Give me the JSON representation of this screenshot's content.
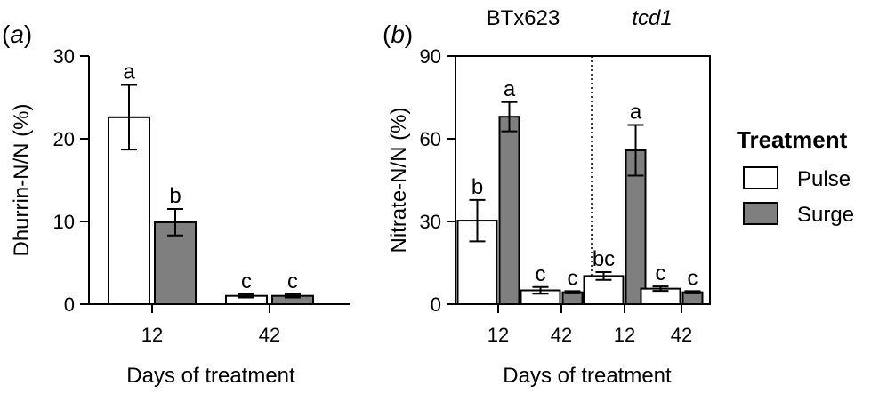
{
  "chart_data": [
    {
      "panel": "(a)",
      "type": "bar",
      "ylabel": "Dhurrin-N/N (%)",
      "xlabel": "Days of treatment",
      "ylim": [
        0,
        30
      ],
      "yticks": [
        0,
        10,
        20,
        30
      ],
      "categories": [
        "12",
        "42"
      ],
      "series": [
        {
          "name": "Pulse",
          "color": "#ffffff",
          "values": [
            22.6,
            1.0
          ],
          "errors": [
            3.9,
            0.2
          ],
          "letters": [
            "a",
            "c"
          ]
        },
        {
          "name": "Surge",
          "color": "#7f7f7f",
          "values": [
            9.9,
            1.0
          ],
          "errors": [
            1.6,
            0.2
          ],
          "letters": [
            "b",
            "c"
          ]
        }
      ]
    },
    {
      "panel": "(b)",
      "type": "bar",
      "ylabel": "Nitrate-N/N (%)",
      "xlabel": "Days of treatment",
      "ylim": [
        0,
        90
      ],
      "yticks": [
        0,
        30,
        60,
        90
      ],
      "groups": [
        {
          "title": "BTx623",
          "italic": false,
          "categories": [
            "12",
            "42"
          ]
        },
        {
          "title": "tcd1",
          "italic": true,
          "categories": [
            "12",
            "42"
          ]
        }
      ],
      "series": [
        {
          "name": "Pulse",
          "color": "#ffffff",
          "values": [
            30.3,
            5.0,
            10.2,
            5.6
          ],
          "errors": [
            7.5,
            1.2,
            1.4,
            0.8
          ],
          "letters": [
            "b",
            "c",
            "bc",
            "c"
          ]
        },
        {
          "name": "Surge",
          "color": "#7f7f7f",
          "values": [
            68.0,
            4.3,
            55.8,
            4.3
          ],
          "errors": [
            5.3,
            0.4,
            9.2,
            0.4
          ],
          "letters": [
            "a",
            "c",
            "a",
            "c"
          ]
        }
      ]
    }
  ],
  "legend": {
    "title": "Treatment",
    "items": [
      {
        "label": "Pulse",
        "color": "#ffffff"
      },
      {
        "label": "Surge",
        "color": "#7f7f7f"
      }
    ]
  }
}
